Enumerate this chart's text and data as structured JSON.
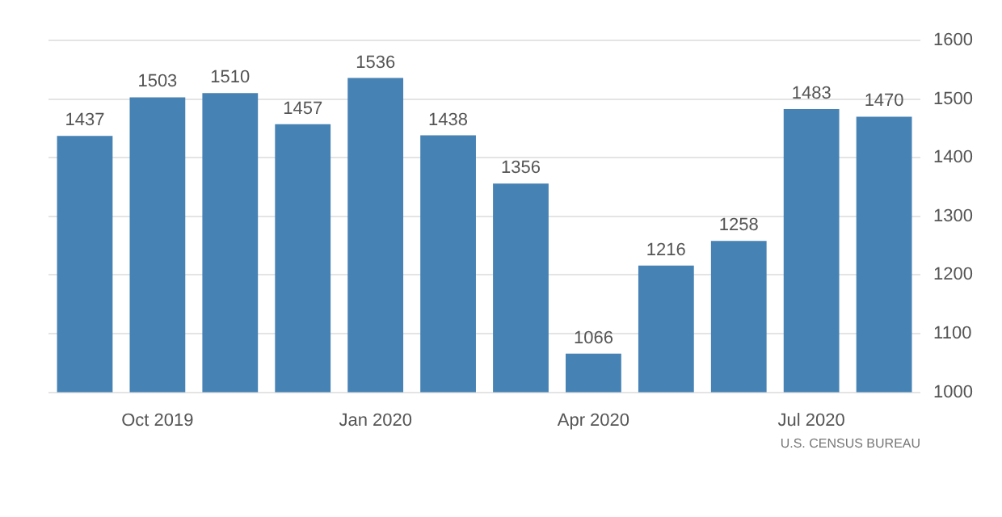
{
  "chart_data": {
    "type": "bar",
    "categories": [
      null,
      "Oct 2019",
      null,
      null,
      "Jan 2020",
      null,
      null,
      "Apr 2020",
      null,
      null,
      "Jul 2020",
      null
    ],
    "values": [
      1437,
      1503,
      1510,
      1457,
      1536,
      1438,
      1356,
      1066,
      1216,
      1258,
      1483,
      1470
    ],
    "color": "#4682b4",
    "ylim": [
      1000,
      1600
    ],
    "yticks": [
      1000,
      1100,
      1200,
      1300,
      1400,
      1500,
      1600
    ],
    "grid": "y",
    "data_labels": true,
    "annotations": [
      "U.S. CENSUS BUREAU"
    ]
  }
}
